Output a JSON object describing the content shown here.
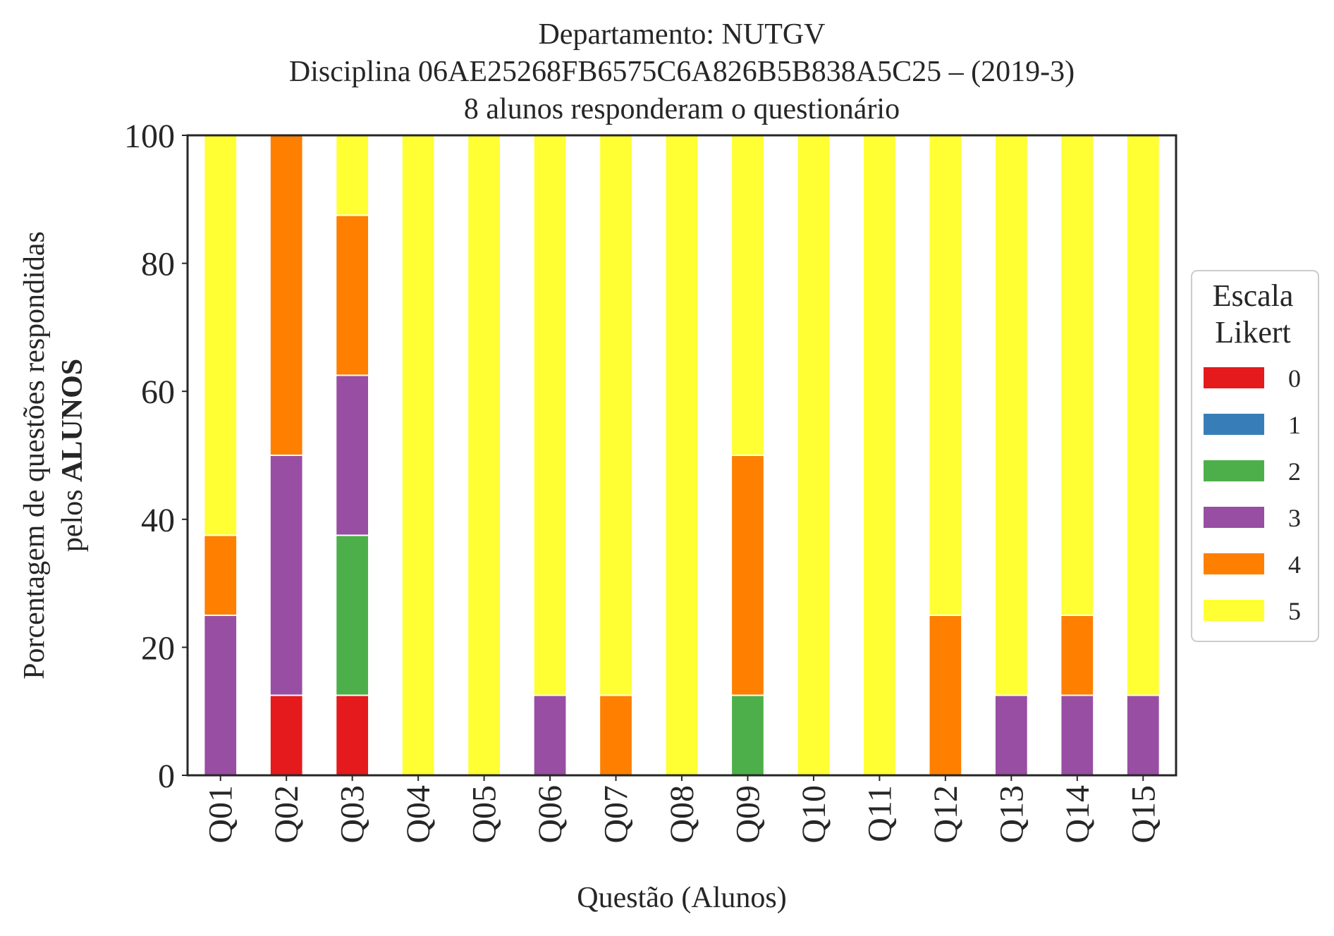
{
  "chart_data": {
    "type": "bar",
    "stacked": true,
    "title_lines": [
      "Departamento: NUTGV",
      "Disciplina 06AE25268FB6575C6A826B5B838A5C25 – (2019-3)",
      "8 alunos responderam o questionário"
    ],
    "xlabel": "Questão (Alunos)",
    "ylabel_lines": [
      "Porcentagem de questões respondidas",
      "pelos ",
      "ALUNOS"
    ],
    "ylim": [
      0,
      100
    ],
    "yticks": [
      "0",
      "20",
      "40",
      "60",
      "80",
      "100"
    ],
    "grid": false,
    "legend": {
      "title_lines": [
        "Escala",
        "Likert"
      ],
      "position": "right-center"
    },
    "categories": [
      "Q01",
      "Q02",
      "Q03",
      "Q04",
      "Q05",
      "Q06",
      "Q07",
      "Q08",
      "Q09",
      "Q10",
      "Q11",
      "Q12",
      "Q13",
      "Q14",
      "Q15"
    ],
    "series": [
      {
        "name": "0",
        "color": "#e41a1c",
        "values": [
          0,
          12.5,
          12.5,
          0,
          0,
          0,
          0,
          0,
          0,
          0,
          0,
          0,
          0,
          0,
          0
        ]
      },
      {
        "name": "1",
        "color": "#377eb8",
        "values": [
          0,
          0,
          0,
          0,
          0,
          0,
          0,
          0,
          0,
          0,
          0,
          0,
          0,
          0,
          0
        ]
      },
      {
        "name": "2",
        "color": "#4daf4a",
        "values": [
          0,
          0,
          25,
          0,
          0,
          0,
          0,
          0,
          12.5,
          0,
          0,
          0,
          0,
          0,
          0
        ]
      },
      {
        "name": "3",
        "color": "#984ea3",
        "values": [
          25,
          37.5,
          25,
          0,
          0,
          12.5,
          0,
          0,
          0,
          0,
          0,
          0,
          12.5,
          12.5,
          12.5
        ]
      },
      {
        "name": "4",
        "color": "#ff7f00",
        "values": [
          12.5,
          50,
          25,
          0,
          0,
          0,
          12.5,
          0,
          37.5,
          0,
          0,
          25,
          0,
          12.5,
          0
        ]
      },
      {
        "name": "5",
        "color": "#ffff33",
        "values": [
          62.5,
          0,
          12.5,
          100,
          100,
          87.5,
          87.5,
          100,
          50,
          100,
          100,
          75,
          87.5,
          75,
          87.5
        ]
      }
    ]
  }
}
